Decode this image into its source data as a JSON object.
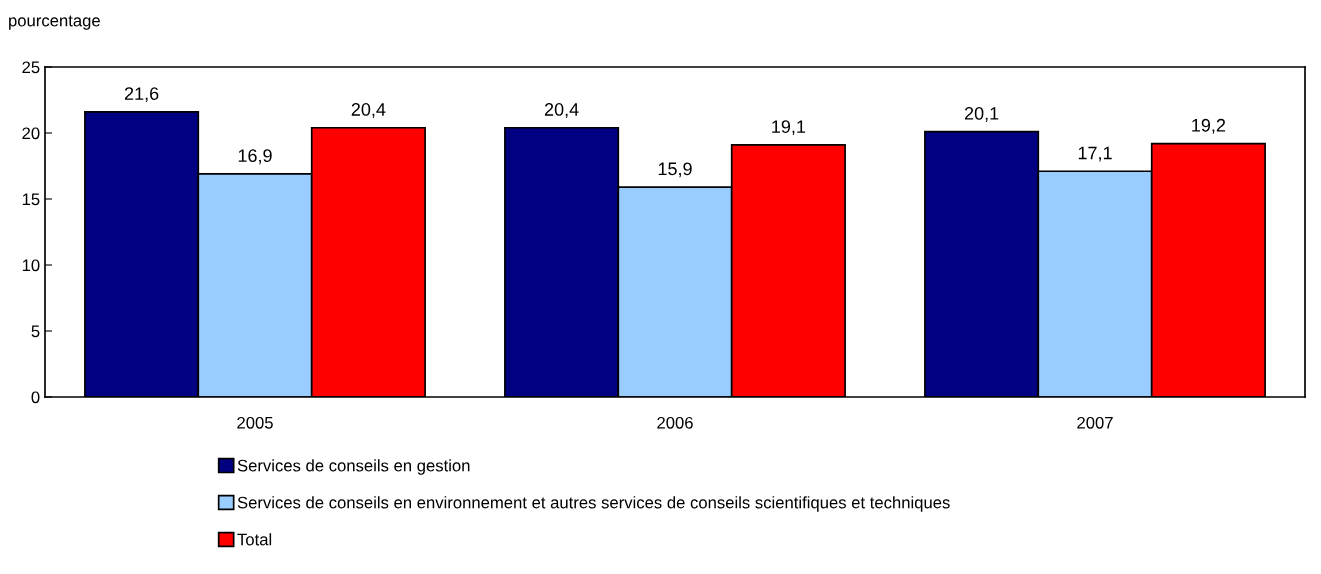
{
  "chart_data": {
    "type": "bar",
    "ylabel": "pourcentage",
    "categories": [
      "2005",
      "2006",
      "2007"
    ],
    "series": [
      {
        "name": "Services de conseils en gestion",
        "color": "#000080",
        "values": [
          21.6,
          20.4,
          20.1
        ],
        "value_labels": [
          "21,6",
          "20,4",
          "20,1"
        ]
      },
      {
        "name": "Services de conseils en environnement et autres services de conseils scientifiques et techniques",
        "color": "#99ccff",
        "values": [
          16.9,
          15.9,
          17.1
        ],
        "value_labels": [
          "16,9",
          "15,9",
          "17,1"
        ]
      },
      {
        "name": "Total",
        "color": "#ff0000",
        "values": [
          20.4,
          19.1,
          19.2
        ],
        "value_labels": [
          "20,4",
          "19,1",
          "19,2"
        ]
      }
    ],
    "ylim": [
      0,
      25
    ],
    "yticks": [
      0,
      5,
      10,
      15,
      20,
      25
    ],
    "grid": false,
    "legend": "bottom"
  }
}
